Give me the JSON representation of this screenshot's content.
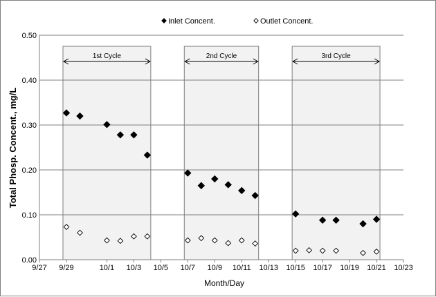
{
  "chart_data": {
    "type": "scatter",
    "title": "",
    "xlabel": "Month/Day",
    "ylabel": "Total Phosp. Concent., mg/L",
    "xlim": [
      "9/27",
      "10/23"
    ],
    "ylim": [
      0,
      0.5
    ],
    "x_ticks": [
      "9/27",
      "9/29",
      "10/1",
      "10/3",
      "10/5",
      "10/7",
      "10/9",
      "10/11",
      "10/13",
      "10/15",
      "10/17",
      "10/19",
      "10/21",
      "10/23"
    ],
    "y_ticks": [
      "0.00",
      "0.10",
      "0.20",
      "0.30",
      "0.40",
      "0.50"
    ],
    "grid": "horizontal",
    "legend": {
      "position": "top-center",
      "entries": [
        "Inlet Concent.",
        "Outlet Concent."
      ]
    },
    "series": [
      {
        "name": "Inlet Concent.",
        "marker": "filled-diamond",
        "color": "#000000",
        "points": [
          {
            "x": "9/29",
            "y": 0.327
          },
          {
            "x": "9/30",
            "y": 0.32
          },
          {
            "x": "10/1",
            "y": 0.301
          },
          {
            "x": "10/2",
            "y": 0.278
          },
          {
            "x": "10/3",
            "y": 0.278
          },
          {
            "x": "10/4",
            "y": 0.233
          },
          {
            "x": "10/7",
            "y": 0.193
          },
          {
            "x": "10/8",
            "y": 0.165
          },
          {
            "x": "10/9",
            "y": 0.18
          },
          {
            "x": "10/10",
            "y": 0.167
          },
          {
            "x": "10/11",
            "y": 0.154
          },
          {
            "x": "10/12",
            "y": 0.143
          },
          {
            "x": "10/15",
            "y": 0.102
          },
          {
            "x": "10/17",
            "y": 0.088
          },
          {
            "x": "10/18",
            "y": 0.088
          },
          {
            "x": "10/20",
            "y": 0.08
          },
          {
            "x": "10/21",
            "y": 0.09
          }
        ]
      },
      {
        "name": "Outlet Concent.",
        "marker": "open-diamond",
        "color": "#000000",
        "points": [
          {
            "x": "9/29",
            "y": 0.073
          },
          {
            "x": "9/30",
            "y": 0.06
          },
          {
            "x": "10/1",
            "y": 0.043
          },
          {
            "x": "10/2",
            "y": 0.042
          },
          {
            "x": "10/3",
            "y": 0.052
          },
          {
            "x": "10/4",
            "y": 0.052
          },
          {
            "x": "10/7",
            "y": 0.043
          },
          {
            "x": "10/8",
            "y": 0.048
          },
          {
            "x": "10/9",
            "y": 0.043
          },
          {
            "x": "10/10",
            "y": 0.037
          },
          {
            "x": "10/11",
            "y": 0.043
          },
          {
            "x": "10/12",
            "y": 0.036
          },
          {
            "x": "10/15",
            "y": 0.02
          },
          {
            "x": "10/16",
            "y": 0.021
          },
          {
            "x": "10/17",
            "y": 0.02
          },
          {
            "x": "10/18",
            "y": 0.02
          },
          {
            "x": "10/20",
            "y": 0.015
          },
          {
            "x": "10/21",
            "y": 0.018
          }
        ]
      }
    ],
    "annotations": [
      {
        "label": "1st Cycle",
        "x_start": "9/29",
        "x_end": "10/4"
      },
      {
        "label": "2nd Cycle",
        "x_start": "10/7",
        "x_end": "10/12"
      },
      {
        "label": "3rd Cycle",
        "x_start": "10/15",
        "x_end": "10/21"
      }
    ]
  }
}
